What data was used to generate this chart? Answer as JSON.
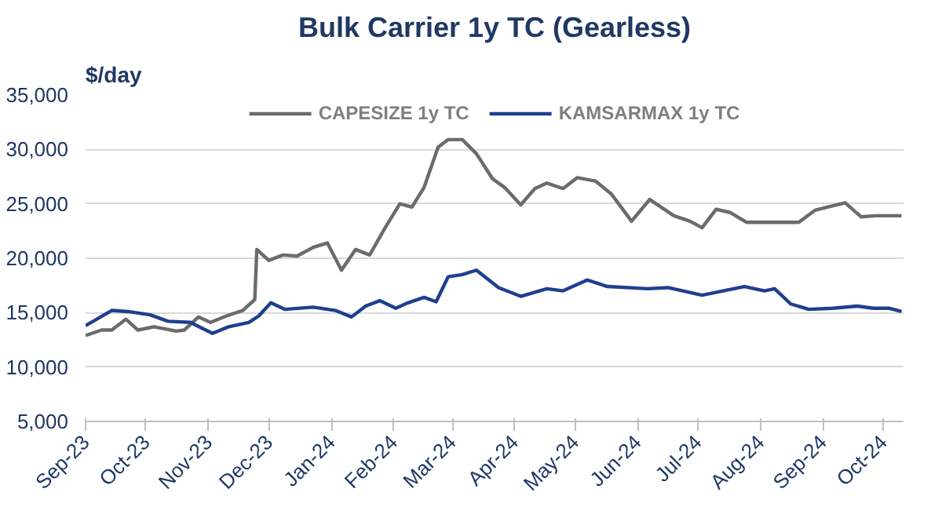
{
  "chart_data": {
    "type": "line",
    "title": "Bulk Carrier 1y TC (Gearless)",
    "ylabel": "$/day",
    "xlim": [
      "2023-09-01",
      "2024-10-11"
    ],
    "xticks": [
      {
        "value": "2023-09-01",
        "label": "Sep-23"
      },
      {
        "value": "2023-10-01",
        "label": "Oct-23"
      },
      {
        "value": "2023-11-01",
        "label": "Nov-23"
      },
      {
        "value": "2023-12-01",
        "label": "Dec-23"
      },
      {
        "value": "2024-01-01",
        "label": "Jan-24"
      },
      {
        "value": "2024-02-01",
        "label": "Feb-24"
      },
      {
        "value": "2024-03-01",
        "label": "Mar-24"
      },
      {
        "value": "2024-04-01",
        "label": "Apr-24"
      },
      {
        "value": "2024-05-01",
        "label": "May-24"
      },
      {
        "value": "2024-06-01",
        "label": "Jun-24"
      },
      {
        "value": "2024-07-01",
        "label": "Jul-24"
      },
      {
        "value": "2024-08-01",
        "label": "Aug-24"
      },
      {
        "value": "2024-09-01",
        "label": "Sep-24"
      },
      {
        "value": "2024-10-01",
        "label": "Oct-24"
      }
    ],
    "ylim": [
      5000,
      35000
    ],
    "yticks": [
      {
        "value": 5000,
        "label": "5,000"
      },
      {
        "value": 10000,
        "label": "10,000"
      },
      {
        "value": 15000,
        "label": "15,000"
      },
      {
        "value": 20000,
        "label": "20,000"
      },
      {
        "value": 25000,
        "label": "25,000"
      },
      {
        "value": 30000,
        "label": "30,000"
      },
      {
        "value": 35000,
        "label": "35,000"
      }
    ],
    "grid": "y",
    "legend": "top",
    "line_style": "solid",
    "series": [
      {
        "name": "CAPESIZE 1y TC",
        "color": "#6b6b6b",
        "x": [
          "2023-09-01",
          "2023-09-09",
          "2023-09-14",
          "2023-09-21",
          "2023-09-27",
          "2023-10-05",
          "2023-10-16",
          "2023-10-20",
          "2023-10-27",
          "2023-11-02",
          "2023-11-10",
          "2023-11-18",
          "2023-11-24",
          "2023-11-25",
          "2023-12-01",
          "2023-12-08",
          "2023-12-15",
          "2023-12-23",
          "2023-12-30",
          "2024-01-06",
          "2024-01-13",
          "2024-01-20",
          "2024-01-28",
          "2024-02-04",
          "2024-02-10",
          "2024-02-16",
          "2024-02-23",
          "2024-02-28",
          "2024-03-06",
          "2024-03-13",
          "2024-03-21",
          "2024-03-27",
          "2024-04-04",
          "2024-04-11",
          "2024-04-17",
          "2024-04-25",
          "2024-05-02",
          "2024-05-11",
          "2024-05-19",
          "2024-05-29",
          "2024-06-07",
          "2024-06-19",
          "2024-06-27",
          "2024-07-03",
          "2024-07-10",
          "2024-07-17",
          "2024-07-25",
          "2024-08-20",
          "2024-08-28",
          "2024-09-12",
          "2024-09-20",
          "2024-09-27",
          "2024-10-10"
        ],
        "values": [
          12900,
          13400,
          13400,
          14400,
          13400,
          13700,
          13300,
          13400,
          14600,
          14100,
          14700,
          15200,
          16200,
          20800,
          19800,
          20300,
          20200,
          21000,
          21400,
          18900,
          20800,
          20300,
          22900,
          25000,
          24700,
          26500,
          30200,
          30900,
          30900,
          29600,
          27300,
          26500,
          24900,
          26400,
          26900,
          26400,
          27400,
          27100,
          25900,
          23400,
          25400,
          23900,
          23400,
          22800,
          24500,
          24200,
          23300,
          23300,
          24400,
          25100,
          23800,
          23900,
          23900
        ]
      },
      {
        "name": "KAMSARMAX 1y TC",
        "color": "#1f3f8f",
        "x": [
          "2023-09-01",
          "2023-09-14",
          "2023-09-22",
          "2023-10-03",
          "2023-10-12",
          "2023-10-23",
          "2023-11-03",
          "2023-11-11",
          "2023-11-21",
          "2023-11-26",
          "2023-12-02",
          "2023-12-09",
          "2023-12-23",
          "2024-01-03",
          "2024-01-11",
          "2024-01-18",
          "2024-01-25",
          "2024-02-02",
          "2024-02-08",
          "2024-02-16",
          "2024-02-22",
          "2024-02-28",
          "2024-03-06",
          "2024-03-13",
          "2024-03-24",
          "2024-04-04",
          "2024-04-17",
          "2024-04-25",
          "2024-05-07",
          "2024-05-17",
          "2024-06-06",
          "2024-06-16",
          "2024-07-03",
          "2024-07-24",
          "2024-08-03",
          "2024-08-08",
          "2024-08-16",
          "2024-08-25",
          "2024-09-06",
          "2024-09-18",
          "2024-09-26",
          "2024-10-04",
          "2024-10-10"
        ],
        "values": [
          13800,
          15200,
          15100,
          14800,
          14200,
          14100,
          13100,
          13700,
          14100,
          14700,
          15900,
          15300,
          15500,
          15200,
          14600,
          15600,
          16100,
          15400,
          15900,
          16400,
          16000,
          18300,
          18500,
          18900,
          17300,
          16500,
          17200,
          17000,
          18000,
          17400,
          17200,
          17300,
          16600,
          17400,
          17000,
          17200,
          15800,
          15300,
          15400,
          15600,
          15400,
          15400,
          15100
        ]
      }
    ]
  }
}
